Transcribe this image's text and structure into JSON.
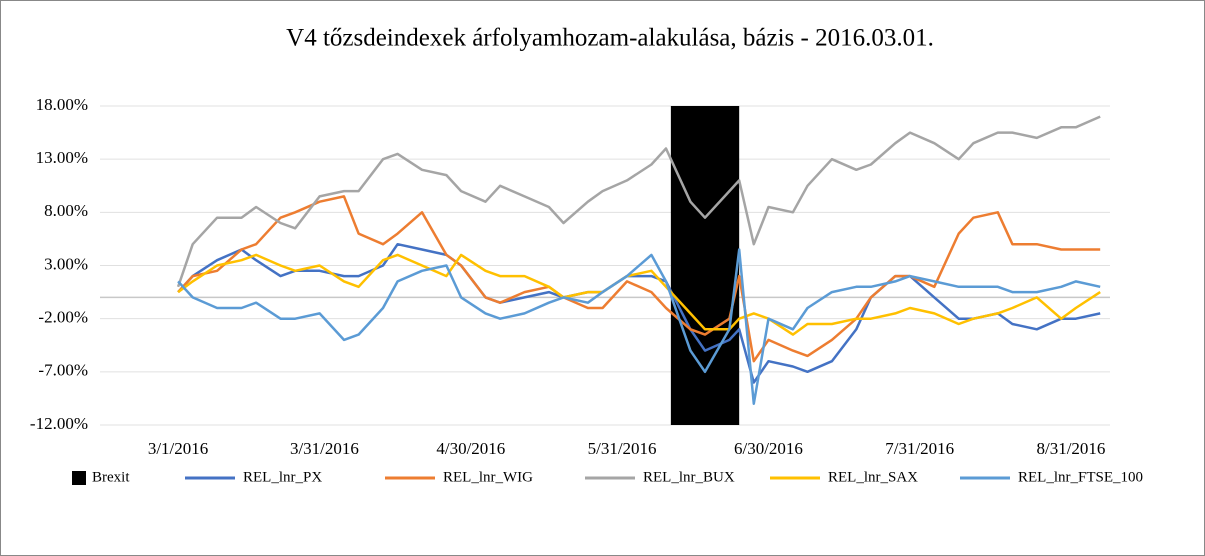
{
  "chart_data": {
    "type": "line",
    "title": "V4 tőzsdeindexek árfolyamhozam-alakulása,  bázis - 2016.03.01.",
    "x": [
      "3/1/2016",
      "3/4/2016",
      "3/9/2016",
      "3/14/2016",
      "3/17/2016",
      "3/22/2016",
      "3/25/2016",
      "3/30/2016",
      "4/4/2016",
      "4/7/2016",
      "4/12/2016",
      "4/15/2016",
      "4/20/2016",
      "4/25/2016",
      "4/28/2016",
      "5/3/2016",
      "5/6/2016",
      "5/11/2016",
      "5/16/2016",
      "5/19/2016",
      "5/24/2016",
      "5/27/2016",
      "6/1/2016",
      "6/6/2016",
      "6/9/2016",
      "6/14/2016",
      "6/17/2016",
      "6/22/2016",
      "6/24/2016",
      "6/27/2016",
      "6/30/2016",
      "7/5/2016",
      "7/8/2016",
      "7/13/2016",
      "7/18/2016",
      "7/21/2016",
      "7/26/2016",
      "7/29/2016",
      "8/3/2016",
      "8/8/2016",
      "8/11/2016",
      "8/16/2016",
      "8/19/2016",
      "8/24/2016",
      "8/29/2016",
      "9/1/2016",
      "9/6/2016"
    ],
    "brexit": {
      "name": "Brexit",
      "color": "#000000",
      "start": "6/10/2016",
      "end": "6/24/2016",
      "value": 18
    },
    "series": [
      {
        "name": "REL_lnr_PX",
        "color": "#4472c4",
        "values": [
          0.5,
          2,
          3.5,
          4.5,
          3.5,
          2,
          2.5,
          2.5,
          2,
          2,
          3,
          5,
          4.5,
          4,
          3,
          0,
          -0.5,
          0,
          0.5,
          0,
          0.5,
          0.5,
          2,
          2,
          1.5,
          -3,
          -5,
          -4,
          -3,
          -8,
          -6,
          -6.5,
          -7,
          -6,
          -3,
          0,
          2,
          2,
          0,
          -2,
          -2,
          -1.5,
          -2.5,
          -3,
          -2,
          -2,
          -1.5
        ]
      },
      {
        "name": "REL_lnr_WIG",
        "color": "#ed7d31",
        "values": [
          0.5,
          2,
          2.5,
          4.5,
          5,
          7.5,
          8,
          9,
          9.5,
          6,
          5,
          6,
          8,
          4,
          3,
          0,
          -0.5,
          0.5,
          1,
          0,
          -1,
          -1,
          1.5,
          0.5,
          -1,
          -3,
          -3.5,
          -2,
          2,
          -6,
          -4,
          -5,
          -5.5,
          -4,
          -2,
          0,
          2,
          2,
          1,
          6,
          7.5,
          8,
          5,
          5,
          4.5,
          4.5,
          4.5
        ]
      },
      {
        "name": "REL_lnr_BUX",
        "color": "#a5a5a5",
        "values": [
          1,
          5,
          7.5,
          7.5,
          8.5,
          7,
          6.5,
          9.5,
          10,
          10,
          13,
          13.5,
          12,
          11.5,
          10,
          9,
          10.5,
          9.5,
          8.5,
          7,
          9,
          10,
          11,
          12.5,
          14,
          9,
          7.5,
          10,
          11,
          5,
          8.5,
          8,
          10.5,
          13,
          12,
          12.5,
          14.5,
          15.5,
          14.5,
          13,
          14.5,
          15.5,
          15.5,
          15,
          16,
          16,
          17
        ]
      },
      {
        "name": "REL_lnr_SAX",
        "color": "#ffc000",
        "values": [
          0.5,
          1.5,
          3,
          3.5,
          4,
          3,
          2.5,
          3,
          1.5,
          1,
          3.5,
          4,
          3,
          2,
          4,
          2.5,
          2,
          2,
          1,
          0,
          0.5,
          0.5,
          2,
          2.5,
          1,
          -1.5,
          -3,
          -3,
          -2,
          -1.5,
          -2,
          -3.5,
          -2.5,
          -2.5,
          -2,
          -2,
          -1.5,
          -1,
          -1.5,
          -2.5,
          -2,
          -1.5,
          -1,
          0,
          -2,
          -1,
          0.5
        ]
      },
      {
        "name": "REL_lnr_FTSE_100",
        "color": "#5b9bd5",
        "values": [
          1.5,
          0,
          -1,
          -1,
          -0.5,
          -2,
          -2,
          -1.5,
          -4,
          -3.5,
          -1,
          1.5,
          2.5,
          3,
          0,
          -1.5,
          -2,
          -1.5,
          -0.5,
          0,
          -0.5,
          0.5,
          2,
          4,
          1.5,
          -5,
          -7,
          -3,
          4.5,
          -10,
          -2,
          -3,
          -1,
          0.5,
          1,
          1,
          1.5,
          2,
          1.5,
          1,
          1,
          1,
          0.5,
          0.5,
          1,
          1.5,
          1
        ]
      }
    ],
    "xlim": [
      "2/14/2016",
      "9/8/2016"
    ],
    "xticks": [
      "3/1/2016",
      "3/31/2016",
      "4/30/2016",
      "5/31/2016",
      "6/30/2016",
      "7/31/2016",
      "8/31/2016"
    ],
    "ylim": [
      -12,
      18
    ],
    "yticks": [
      {
        "value": -12,
        "label": "-12.00%"
      },
      {
        "value": -7,
        "label": "-7.00%"
      },
      {
        "value": -2,
        "label": "-2.00%"
      },
      {
        "value": 3,
        "label": "3.00%"
      },
      {
        "value": 8,
        "label": "8.00%"
      },
      {
        "value": 13,
        "label": "13.00%"
      },
      {
        "value": 18,
        "label": "18.00%"
      }
    ],
    "grid": true,
    "legend": "bottom"
  }
}
